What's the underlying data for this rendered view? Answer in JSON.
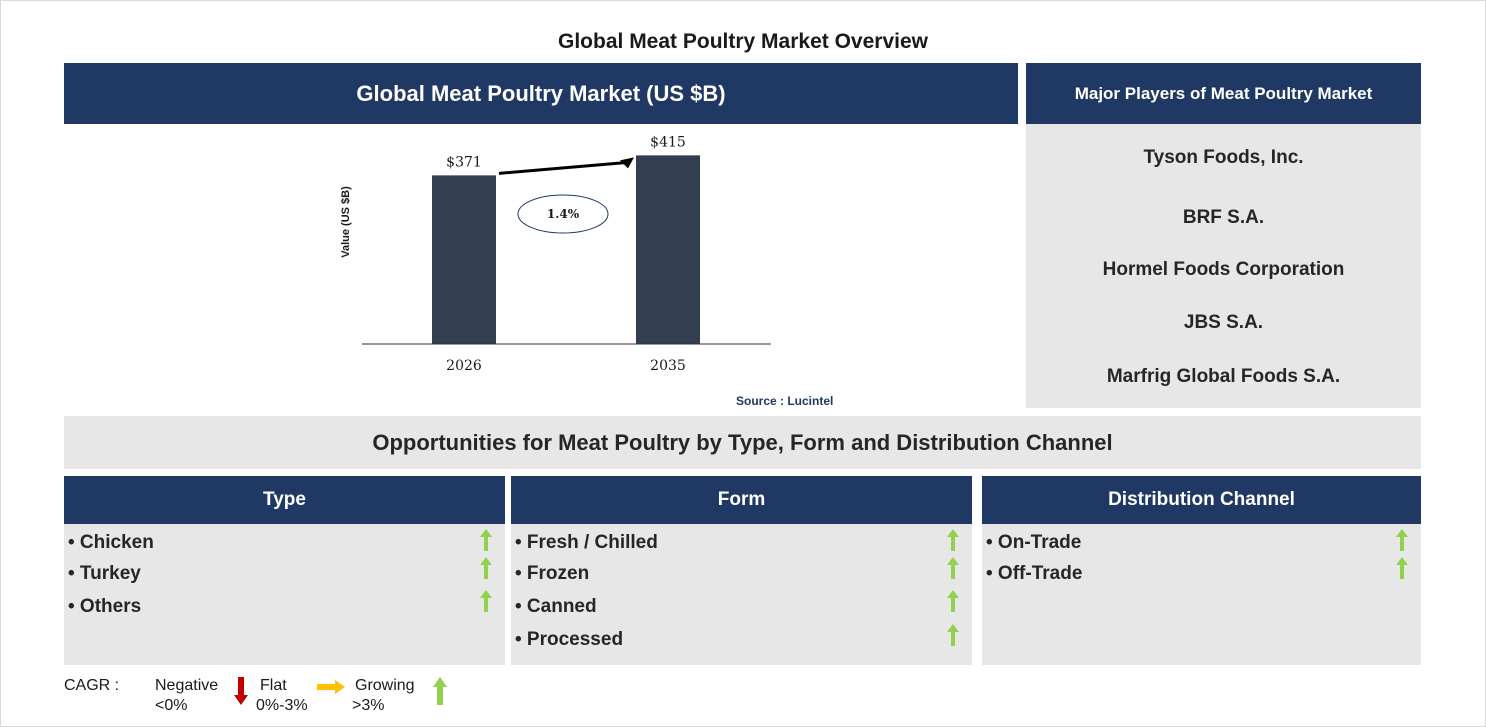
{
  "title": "Global Meat Poultry Market Overview",
  "chart_panel": {
    "header": "Global Meat Poultry Market (US $B)",
    "source": "Source : Lucintel"
  },
  "chart_data": {
    "type": "bar",
    "categories": [
      "2026",
      "2035"
    ],
    "values": [
      371,
      415
    ],
    "data_labels": [
      "$371",
      "$415"
    ],
    "ylabel": "Value (US $B)",
    "xlabel": "",
    "cagr_label": "1.4%",
    "bar_color": "#333f50",
    "ylim": [
      0,
      440
    ]
  },
  "players": {
    "header": "Major Players of Meat Poultry Market",
    "items": [
      "Tyson Foods, Inc.",
      "BRF S.A.",
      "Hormel Foods Corporation",
      "JBS S.A.",
      "Marfrig Global Foods S.A."
    ]
  },
  "opportunities": {
    "title": "Opportunities for Meat Poultry by Type, Form and Distribution Channel",
    "columns": [
      {
        "header": "Type",
        "items": [
          "• Chicken",
          "• Turkey",
          "• Others"
        ],
        "trend": [
          "growing",
          "growing",
          "growing"
        ]
      },
      {
        "header": "Form",
        "items": [
          "• Fresh / Chilled",
          "• Frozen",
          "• Canned",
          "• Processed"
        ],
        "trend": [
          "growing",
          "growing",
          "growing",
          "growing"
        ]
      },
      {
        "header": "Distribution Channel",
        "items": [
          "• On-Trade",
          "• Off-Trade"
        ],
        "trend": [
          "growing",
          "growing"
        ]
      }
    ]
  },
  "legend": {
    "label": "CAGR :",
    "negative": {
      "name": "Negative",
      "range": "<0%",
      "icon": "red-down-arrow-icon",
      "color": "#c00000"
    },
    "flat": {
      "name": "Flat",
      "range": "0%-3%",
      "icon": "orange-right-arrow-icon",
      "color": "#ffc000"
    },
    "growing": {
      "name": "Growing",
      "range": ">3%",
      "icon": "green-up-arrow-icon",
      "color": "#92d050"
    }
  }
}
